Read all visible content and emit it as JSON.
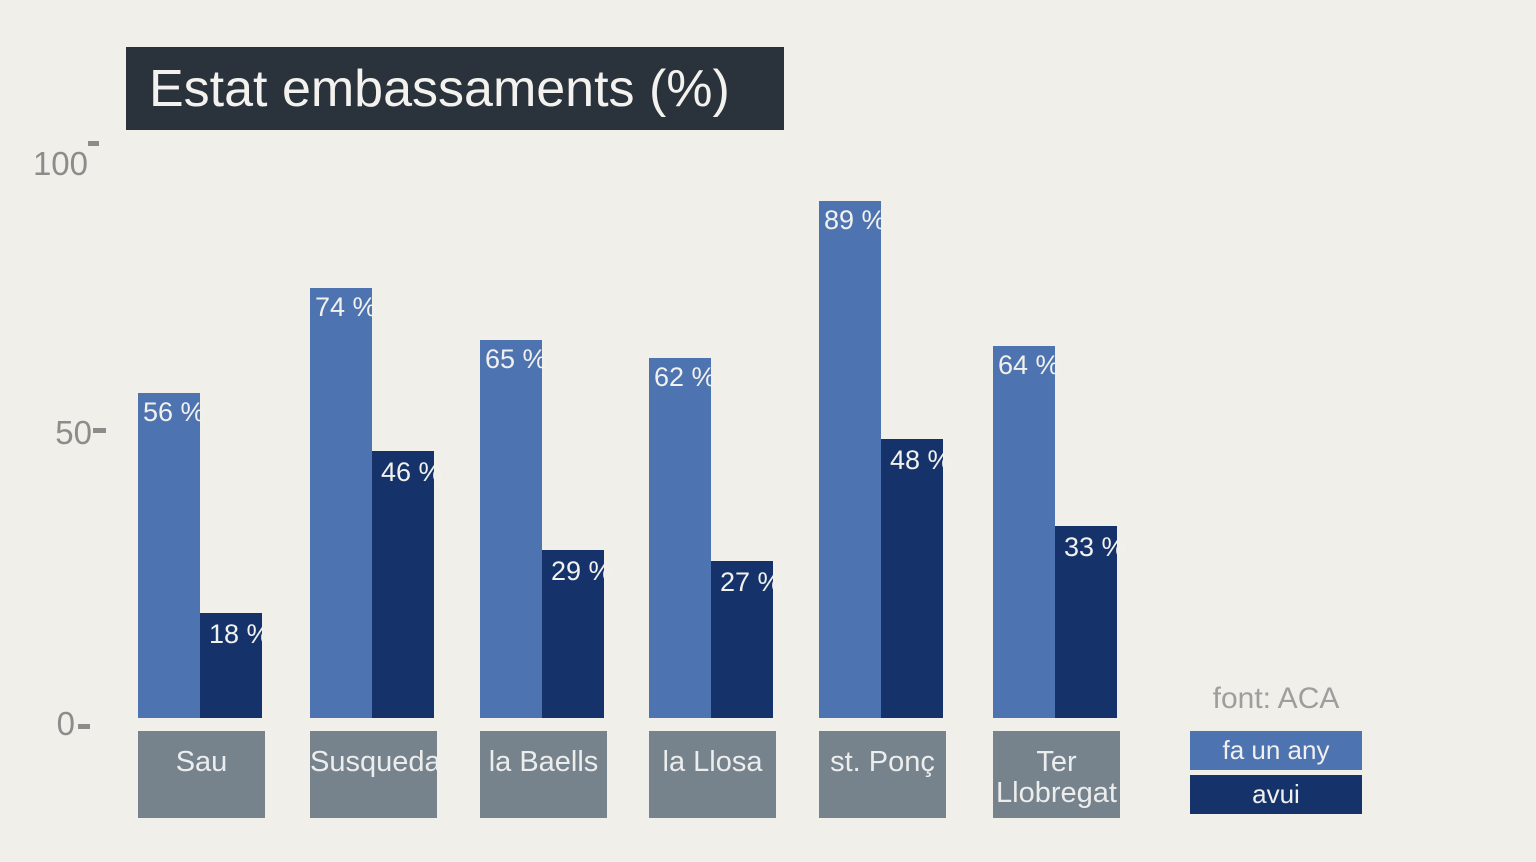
{
  "title": "Estat embassaments (%)",
  "source": "font: ACA",
  "chart_data": {
    "type": "bar",
    "title": "Estat embassaments (%)",
    "categories": [
      "Sau",
      "Susqueda",
      "la Baells",
      "la Llosa",
      "st. Ponç",
      "Ter Llobregat"
    ],
    "series": [
      {
        "name": "fa un any",
        "color": "#4d74b0",
        "values": [
          56,
          74,
          65,
          62,
          89,
          64
        ]
      },
      {
        "name": "avui",
        "color": "#15336a",
        "values": [
          18,
          46,
          29,
          27,
          48,
          33
        ]
      }
    ],
    "value_suffix": " %",
    "xlabel": "",
    "ylabel": "",
    "ylim": [
      0,
      100
    ],
    "yticks": [
      100,
      50,
      0
    ],
    "grid": false,
    "legend_position": "bottom-right",
    "source": "font: ACA",
    "colors": {
      "background": "#f0efea",
      "title_bg": "#2a323b",
      "title_text": "#f3f2ee",
      "category_box": "#76828c",
      "axis_text": "#8c8c8a",
      "source_text": "#9e9e9c",
      "value_text": "#f2f1ee"
    }
  }
}
